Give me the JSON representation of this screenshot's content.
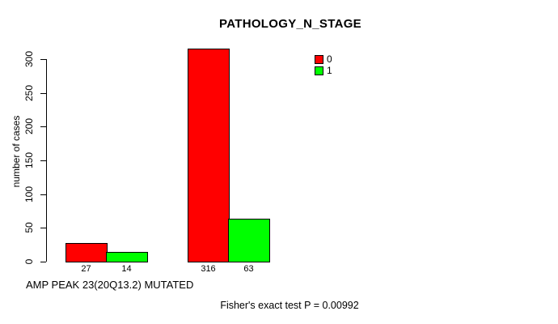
{
  "chart_data": {
    "type": "bar",
    "title": "PATHOLOGY_N_STAGE",
    "ylabel": "number of cases",
    "xlabel": "AMP PEAK 23(20Q13.2) MUTATED",
    "footer": "Fisher's exact test P = 0.00992",
    "ylim": [
      0,
      300
    ],
    "yticks": [
      0,
      50,
      100,
      150,
      200,
      250,
      300
    ],
    "grid": false,
    "legend_position": "top-right",
    "legend": [
      {
        "label": "0",
        "color": "#ff0000"
      },
      {
        "label": "1",
        "color": "#00ff00"
      }
    ],
    "series": [
      {
        "name": "0",
        "color": "#ff0000",
        "values": [
          27,
          316
        ]
      },
      {
        "name": "1",
        "color": "#00ff00",
        "values": [
          14,
          63
        ]
      }
    ],
    "groups": 2,
    "bar_value_labels": [
      [
        27,
        14
      ],
      [
        316,
        63
      ]
    ]
  }
}
